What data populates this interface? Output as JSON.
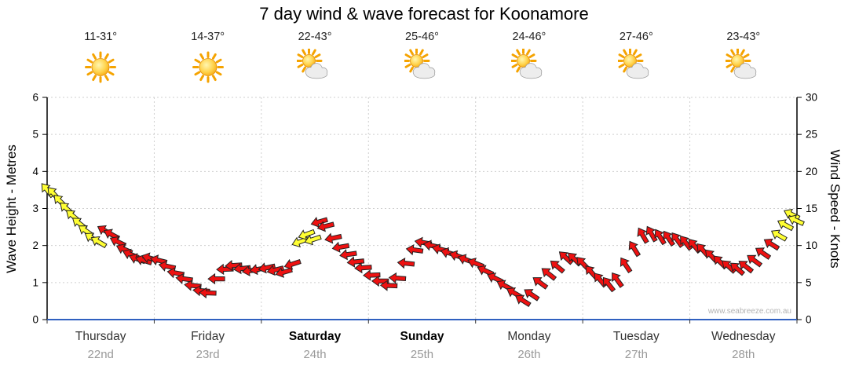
{
  "title": "7 day wind & wave forecast for Koonamore",
  "watermark": "www.seabreeze.com.au",
  "axes": {
    "left": {
      "title": "Wave Height - Metres",
      "ticks": [
        "0",
        "1",
        "2",
        "3",
        "4",
        "5",
        "6"
      ],
      "range": [
        0,
        6
      ]
    },
    "right": {
      "title": "Wind Speed - Knots",
      "ticks": [
        "0",
        "5",
        "10",
        "15",
        "20",
        "25",
        "30"
      ],
      "range": [
        0,
        30
      ]
    }
  },
  "days": [
    {
      "name": "Thursday",
      "date": "22nd",
      "temp_range": "11-31°",
      "icon": "sun",
      "emphasis": false
    },
    {
      "name": "Friday",
      "date": "23rd",
      "temp_range": "14-37°",
      "icon": "sun",
      "emphasis": false
    },
    {
      "name": "Saturday",
      "date": "24th",
      "temp_range": "22-43°",
      "icon": "sun-cloud",
      "emphasis": true
    },
    {
      "name": "Sunday",
      "date": "25th",
      "temp_range": "25-46°",
      "icon": "sun-cloud",
      "emphasis": true
    },
    {
      "name": "Monday",
      "date": "26th",
      "temp_range": "24-46°",
      "icon": "sun-cloud",
      "emphasis": false
    },
    {
      "name": "Tuesday",
      "date": "27th",
      "temp_range": "27-46°",
      "icon": "sun-cloud",
      "emphasis": false
    },
    {
      "name": "Wednesday",
      "date": "28th",
      "temp_range": "23-43°",
      "icon": "sun-cloud",
      "emphasis": false
    }
  ],
  "chart_data": {
    "type": "scatter",
    "subtype": "wind-direction-arrows",
    "title": "7 day wind & wave forecast for Koonamore",
    "x_unit": "days",
    "x_range": [
      0,
      7
    ],
    "x_categories": [
      "Thursday 22nd",
      "Friday 23rd",
      "Saturday 24th",
      "Sunday 25th",
      "Monday 26th",
      "Tuesday 27th",
      "Wednesday 28th"
    ],
    "y_unit": "knots",
    "y_range": [
      0,
      30
    ],
    "wave_height_scale_metres": [
      0,
      6
    ],
    "grid": true,
    "colors": {
      "moderate_wind": "#ee1111",
      "light_wind": "#ffff33",
      "arrow_outline": "#222222",
      "grid": "#cfcfcf",
      "y_axis": "#000000",
      "x_axis": "#3060c0"
    },
    "point_format": [
      "day_fraction",
      "wind_speed_knots",
      "direction_deg",
      "color_key(r=moderate,y=light)"
    ],
    "points": [
      [
        0.0,
        17.5,
        320,
        "y"
      ],
      [
        0.06,
        17.0,
        318,
        "y"
      ],
      [
        0.12,
        16.0,
        315,
        "y"
      ],
      [
        0.18,
        15.0,
        312,
        "y"
      ],
      [
        0.24,
        14.0,
        310,
        "y"
      ],
      [
        0.3,
        13.0,
        308,
        "y"
      ],
      [
        0.36,
        12.0,
        305,
        "y"
      ],
      [
        0.42,
        11.0,
        303,
        "y"
      ],
      [
        0.48,
        10.5,
        300,
        "y"
      ],
      [
        0.54,
        12.0,
        300,
        "r"
      ],
      [
        0.6,
        11.5,
        298,
        "r"
      ],
      [
        0.66,
        10.5,
        296,
        "r"
      ],
      [
        0.72,
        9.5,
        294,
        "r"
      ],
      [
        0.78,
        8.8,
        292,
        "r"
      ],
      [
        0.84,
        8.2,
        290,
        "r"
      ],
      [
        0.9,
        8.0,
        288,
        "r"
      ],
      [
        0.96,
        8.3,
        286,
        "r"
      ],
      [
        1.04,
        8.0,
        284,
        "r"
      ],
      [
        1.12,
        7.2,
        282,
        "r"
      ],
      [
        1.2,
        6.3,
        280,
        "r"
      ],
      [
        1.28,
        5.5,
        278,
        "r"
      ],
      [
        1.36,
        4.6,
        276,
        "r"
      ],
      [
        1.44,
        3.9,
        274,
        "r"
      ],
      [
        1.5,
        3.6,
        272,
        "r"
      ],
      [
        1.58,
        5.5,
        270,
        "r"
      ],
      [
        1.66,
        6.8,
        268,
        "r"
      ],
      [
        1.74,
        7.3,
        266,
        "r"
      ],
      [
        1.82,
        6.9,
        264,
        "r"
      ],
      [
        1.9,
        6.6,
        262,
        "r"
      ],
      [
        1.97,
        6.8,
        260,
        "r"
      ],
      [
        2.05,
        7.0,
        258,
        "r"
      ],
      [
        2.13,
        6.7,
        256,
        "r"
      ],
      [
        2.21,
        6.4,
        254,
        "r"
      ],
      [
        2.29,
        7.5,
        252,
        "r"
      ],
      [
        2.36,
        10.5,
        250,
        "y"
      ],
      [
        2.42,
        11.5,
        250,
        "y"
      ],
      [
        2.48,
        10.8,
        252,
        "y"
      ],
      [
        2.54,
        13.2,
        254,
        "r"
      ],
      [
        2.6,
        12.6,
        256,
        "r"
      ],
      [
        2.67,
        11.0,
        258,
        "r"
      ],
      [
        2.74,
        9.8,
        260,
        "r"
      ],
      [
        2.81,
        8.8,
        262,
        "r"
      ],
      [
        2.88,
        7.8,
        264,
        "r"
      ],
      [
        2.95,
        7.0,
        266,
        "r"
      ],
      [
        3.03,
        6.0,
        268,
        "r"
      ],
      [
        3.11,
        5.2,
        270,
        "r"
      ],
      [
        3.19,
        4.6,
        272,
        "r"
      ],
      [
        3.27,
        5.6,
        274,
        "r"
      ],
      [
        3.35,
        7.6,
        276,
        "r"
      ],
      [
        3.43,
        9.4,
        278,
        "r"
      ],
      [
        3.51,
        10.4,
        280,
        "r"
      ],
      [
        3.59,
        10.0,
        282,
        "r"
      ],
      [
        3.67,
        9.5,
        284,
        "r"
      ],
      [
        3.75,
        9.0,
        286,
        "r"
      ],
      [
        3.83,
        8.6,
        288,
        "r"
      ],
      [
        3.91,
        8.1,
        290,
        "r"
      ],
      [
        4.0,
        7.6,
        292,
        "r"
      ],
      [
        4.09,
        6.6,
        294,
        "r"
      ],
      [
        4.18,
        5.6,
        296,
        "r"
      ],
      [
        4.27,
        4.6,
        298,
        "r"
      ],
      [
        4.36,
        3.6,
        300,
        "r"
      ],
      [
        4.44,
        2.6,
        302,
        "r"
      ],
      [
        4.52,
        3.4,
        304,
        "r"
      ],
      [
        4.6,
        5.0,
        306,
        "r"
      ],
      [
        4.68,
        6.2,
        308,
        "r"
      ],
      [
        4.76,
        7.2,
        310,
        "r"
      ],
      [
        4.84,
        8.4,
        312,
        "r"
      ],
      [
        4.92,
        8.2,
        314,
        "r"
      ],
      [
        5.0,
        7.6,
        316,
        "r"
      ],
      [
        5.08,
        6.4,
        318,
        "r"
      ],
      [
        5.16,
        5.4,
        320,
        "r"
      ],
      [
        5.24,
        4.8,
        322,
        "r"
      ],
      [
        5.32,
        5.4,
        324,
        "r"
      ],
      [
        5.4,
        7.4,
        326,
        "r"
      ],
      [
        5.48,
        9.6,
        328,
        "r"
      ],
      [
        5.56,
        11.4,
        330,
        "r"
      ],
      [
        5.64,
        11.6,
        330,
        "r"
      ],
      [
        5.72,
        11.2,
        328,
        "r"
      ],
      [
        5.8,
        11.0,
        326,
        "r"
      ],
      [
        5.88,
        10.8,
        324,
        "r"
      ],
      [
        5.96,
        10.4,
        322,
        "r"
      ],
      [
        6.04,
        10.0,
        320,
        "r"
      ],
      [
        6.12,
        9.4,
        318,
        "r"
      ],
      [
        6.2,
        8.6,
        316,
        "r"
      ],
      [
        6.28,
        7.8,
        314,
        "r"
      ],
      [
        6.36,
        7.2,
        312,
        "r"
      ],
      [
        6.44,
        6.9,
        310,
        "r"
      ],
      [
        6.52,
        7.2,
        308,
        "r"
      ],
      [
        6.6,
        8.0,
        306,
        "r"
      ],
      [
        6.68,
        9.0,
        304,
        "r"
      ],
      [
        6.76,
        10.2,
        302,
        "r"
      ],
      [
        6.83,
        11.4,
        300,
        "y"
      ],
      [
        6.89,
        12.8,
        298,
        "y"
      ],
      [
        6.95,
        14.2,
        296,
        "y"
      ],
      [
        6.99,
        13.4,
        294,
        "y"
      ]
    ]
  }
}
